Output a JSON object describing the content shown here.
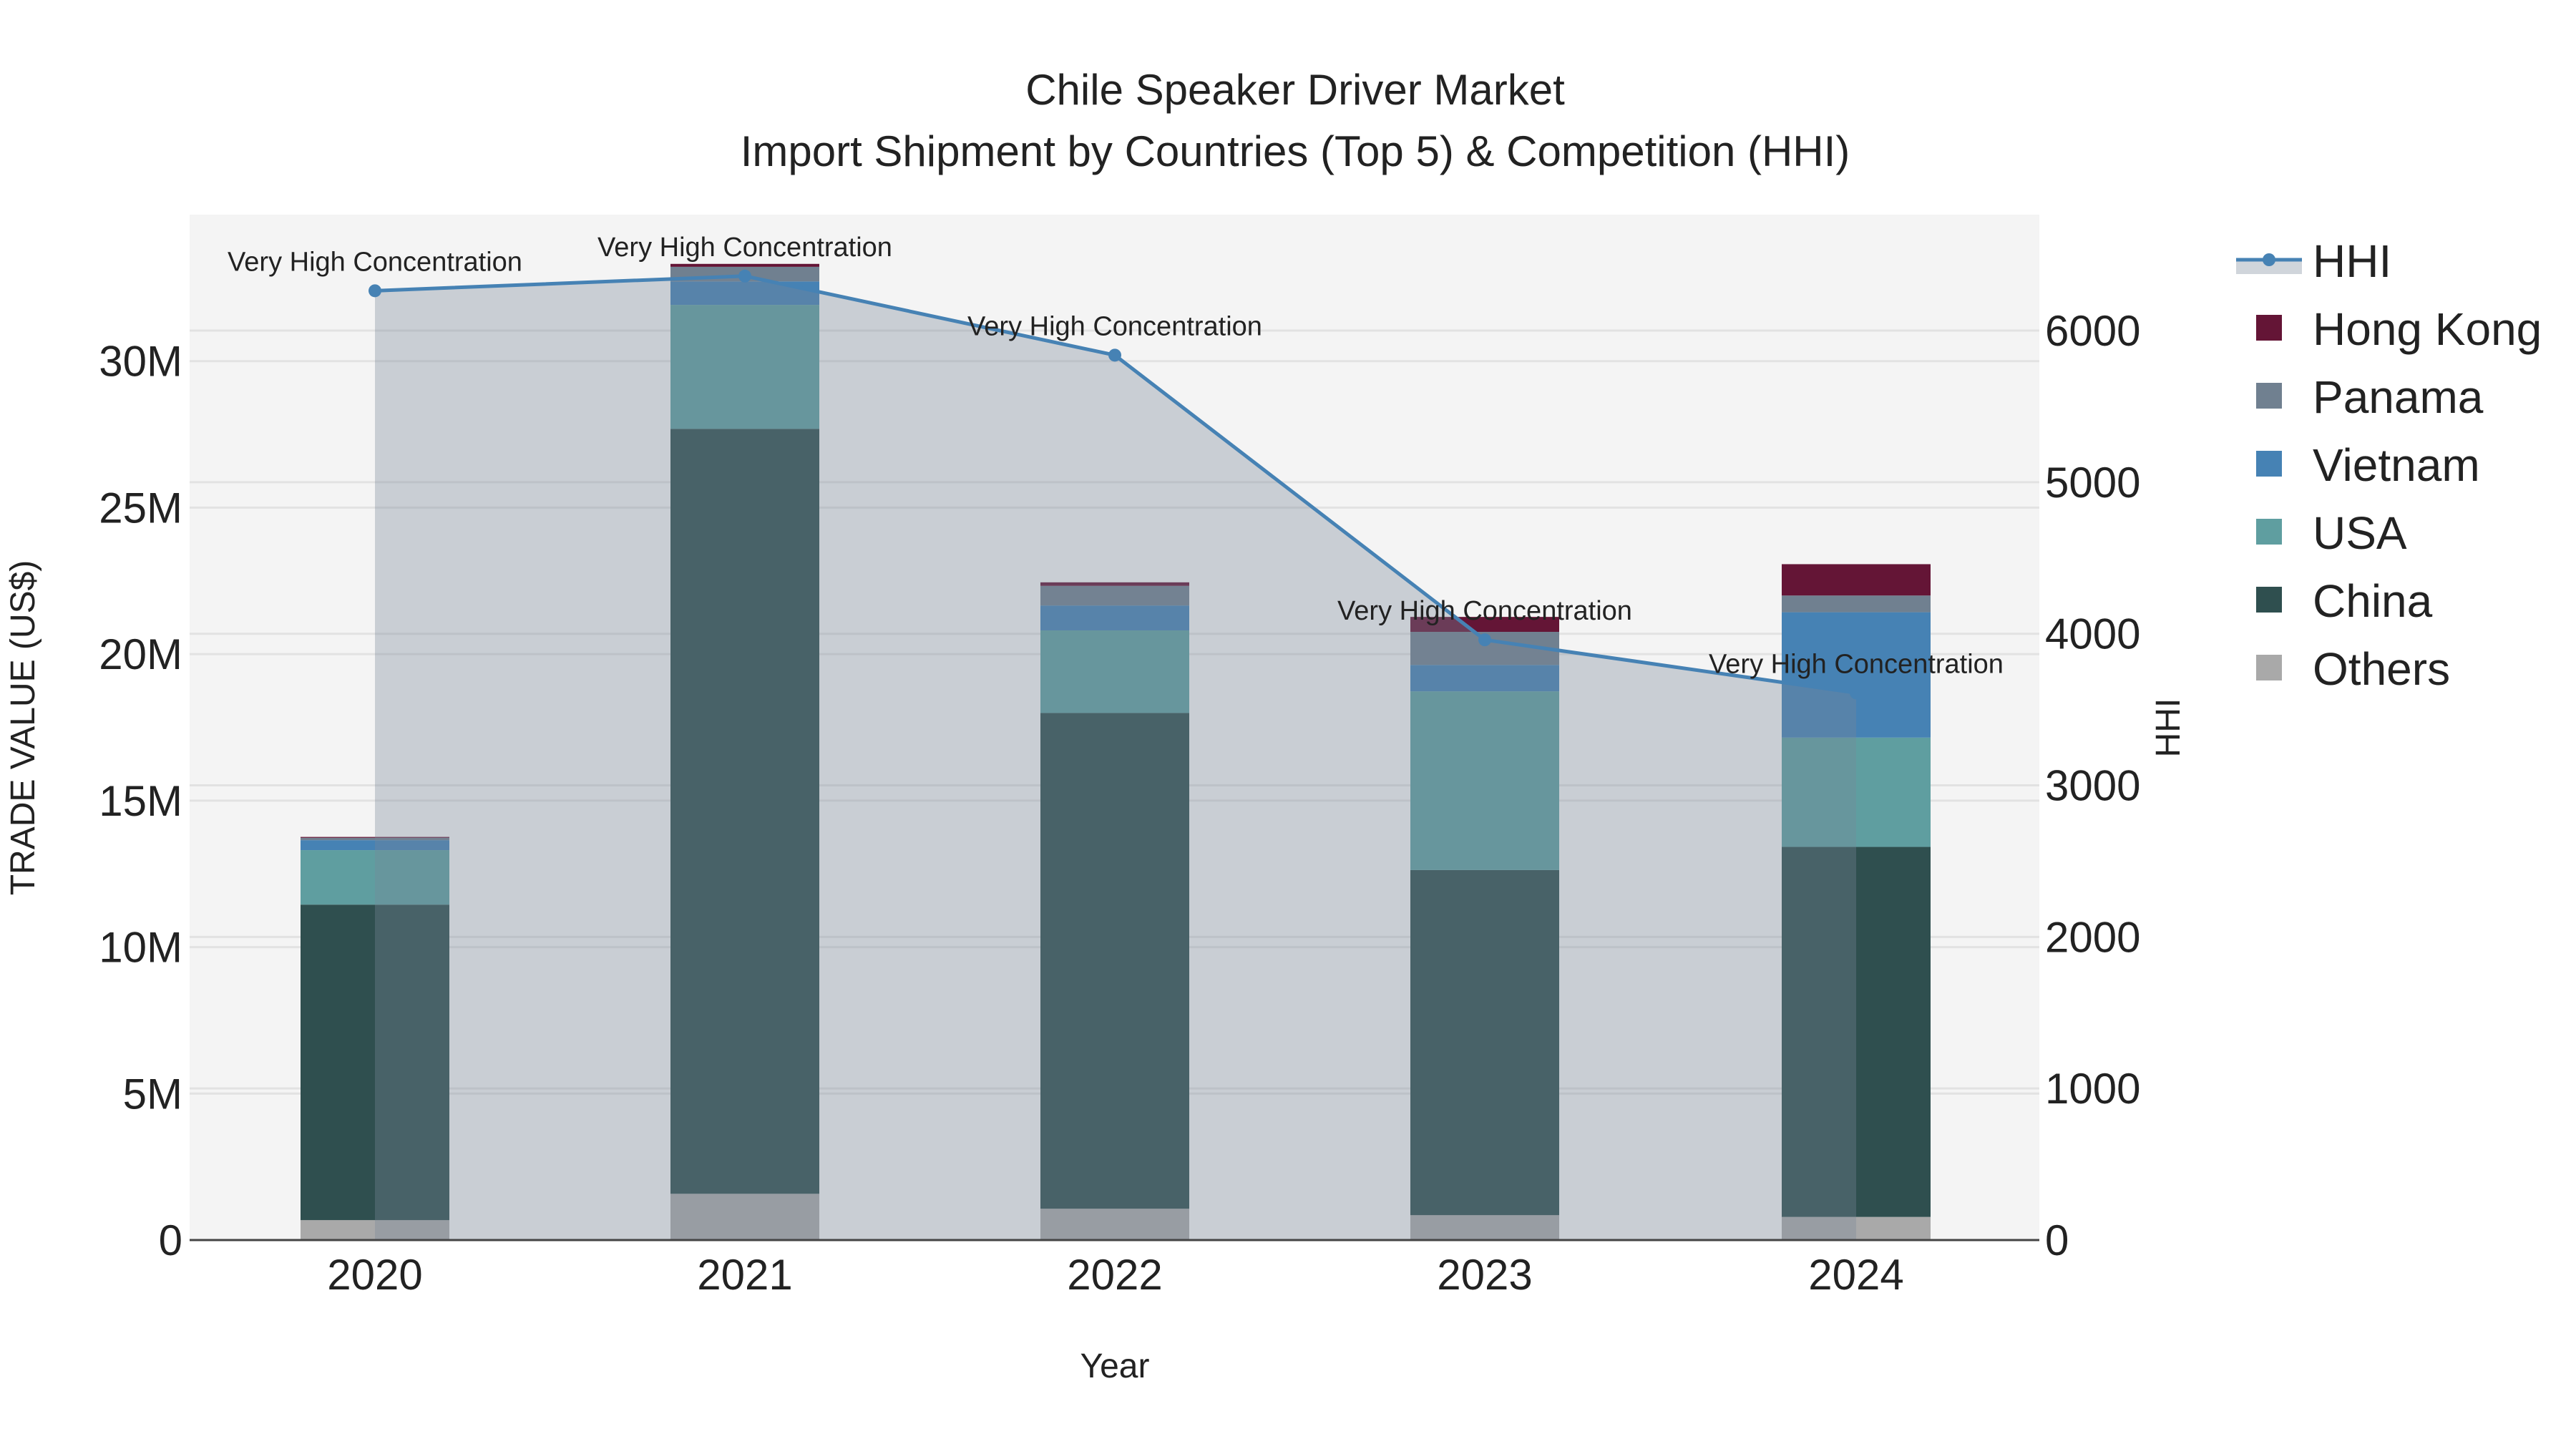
{
  "chart_data": {
    "type": "bar",
    "title": "Chile Speaker Driver Market",
    "subtitle": "Import Shipment by Countries (Top 5) & Competition (HHI)",
    "xlabel": "Year",
    "ylabel": "TRADE VALUE (US$)",
    "y2label": "HHI",
    "categories": [
      "2020",
      "2021",
      "2022",
      "2023",
      "2024"
    ],
    "ylim": [
      0,
      35000000
    ],
    "y2lim": [
      0,
      6765
    ],
    "yticks": [
      0,
      5000000,
      10000000,
      15000000,
      20000000,
      25000000,
      30000000
    ],
    "ytick_labels": [
      "0",
      "5M",
      "10M",
      "15M",
      "20M",
      "25M",
      "30M"
    ],
    "y2ticks": [
      0,
      1000,
      2000,
      3000,
      4000,
      5000,
      6000
    ],
    "y2tick_labels": [
      "0",
      "1000",
      "2000",
      "3000",
      "4000",
      "5000",
      "6000"
    ],
    "grid": true,
    "legend_position": "right",
    "series": [
      {
        "name": "Others",
        "color": "#a9a9a9",
        "values": [
          680000,
          1580000,
          1070000,
          850000,
          790000
        ]
      },
      {
        "name": "China",
        "color": "#2f4f4f",
        "values": [
          10770000,
          26110000,
          16920000,
          11780000,
          12630000
        ]
      },
      {
        "name": "USA",
        "color": "#5f9ea0",
        "values": [
          1860000,
          4230000,
          2820000,
          6100000,
          3730000
        ]
      },
      {
        "name": "Vietnam",
        "color": "#4682b4",
        "values": [
          340000,
          800000,
          850000,
          900000,
          4280000
        ]
      },
      {
        "name": "Panama",
        "color": "#708090",
        "values": [
          80000,
          500000,
          670000,
          1130000,
          570000
        ]
      },
      {
        "name": "Hong Kong",
        "color": "#641536",
        "values": [
          30000,
          100000,
          120000,
          510000,
          1070000
        ]
      }
    ],
    "hhi": {
      "name": "HHI",
      "color": "#4682b4",
      "values": [
        6263,
        6360,
        5838,
        3960,
        3610
      ],
      "annotations": [
        "Very High Concentration",
        "Very High Concentration",
        "Very High Concentration",
        "Very High Concentration",
        "Very High Concentration"
      ]
    },
    "legend_order": [
      "HHI",
      "Hong Kong",
      "Panama",
      "Vietnam",
      "USA",
      "China",
      "Others"
    ]
  }
}
